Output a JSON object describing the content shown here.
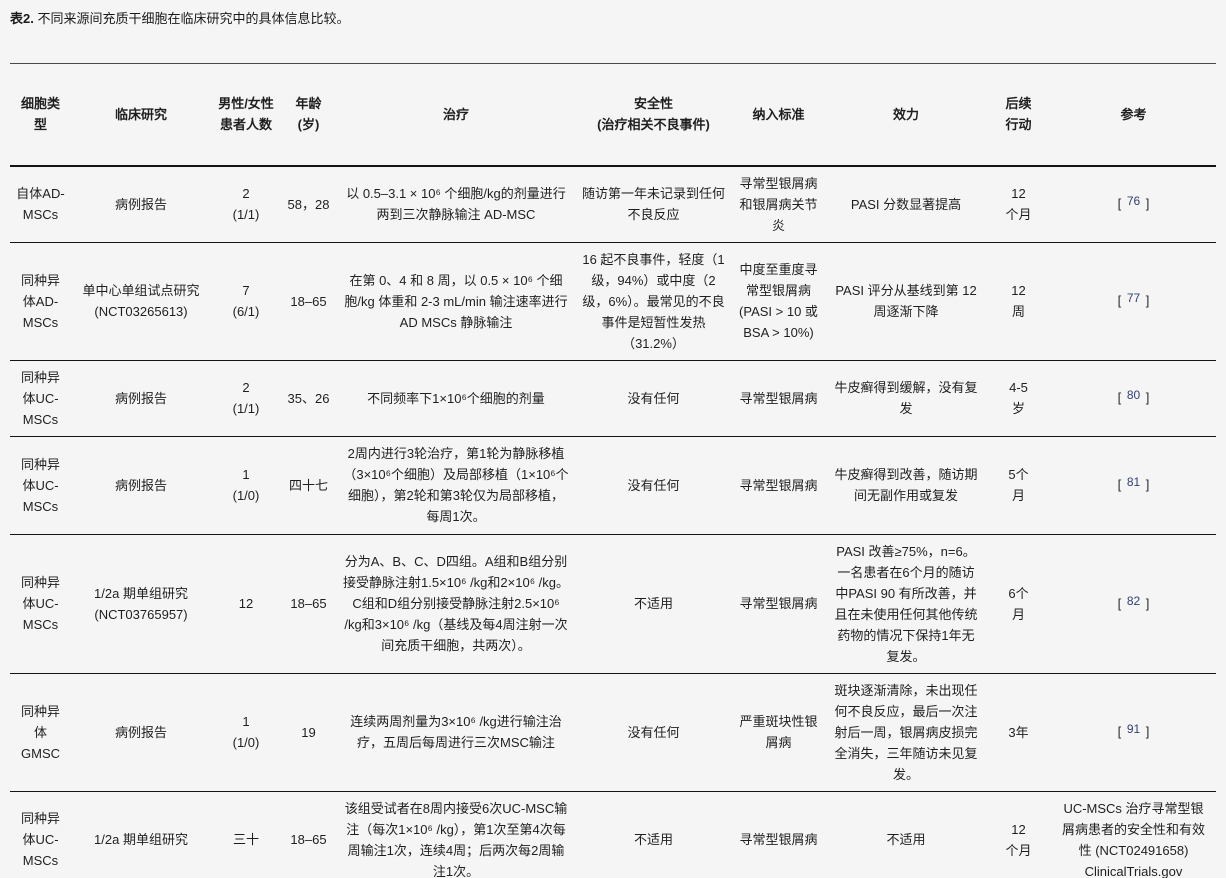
{
  "colors": {
    "reference_link": "#33416e",
    "page_background": "#f5f5f5",
    "rule": "#141414"
  },
  "title": {
    "bold": "表2.",
    "rest": " 不同来源间充质干细胞在临床研究中的具体信息比较。"
  },
  "table": {
    "headers": [
      "细胞类型",
      "临床研究",
      "男性/女性患者人数",
      "年龄\n(岁)",
      "治疗",
      "安全性\n(治疗相关不良事件)",
      "纳入标准",
      "效力",
      "后续\n行动",
      "参考"
    ],
    "rows": [
      {
        "cell_type": "自体AD-MSCs",
        "study": "病例报告",
        "patients": "2\n(1/1)",
        "age": "58，28",
        "treatment": "以 0.5–3.1 × 10⁶ 个细胞/kg的剂量进行两到三次静脉输注 AD-MSC",
        "safety": "随访第一年未记录到任何不良反应",
        "criteria": "寻常型银屑病和银屑病关节炎",
        "efficacy": "PASI 分数显著提高",
        "followup": "12\n个月",
        "ref": {
          "bracket_open": "[ ",
          "number": "76",
          "bracket_close": " ]"
        }
      },
      {
        "cell_type": "同种异体AD-MSCs",
        "study": "单中心单组试点研究\n(NCT03265613)",
        "patients": "7\n(6/1)",
        "age": "18–65",
        "treatment": "在第 0、4 和 8 周，以 0.5 × 10⁶ 个细胞/kg 体重和 2-3 mL/min 输注速率进行 AD MSCs 静脉输注",
        "safety": "16 起不良事件，轻度（1 级，94%）或中度（2 级，6%）。最常见的不良事件是短暂性发热（31.2%）",
        "criteria": "中度至重度寻常型银屑病 (PASI > 10 或 BSA > 10%)",
        "efficacy": "PASI 评分从基线到第 12 周逐渐下降",
        "followup": "12\n周",
        "ref": {
          "bracket_open": "[ ",
          "number": "77",
          "bracket_close": " ]"
        }
      },
      {
        "cell_type": "同种异体UC-MSCs",
        "study": "病例报告",
        "patients": "2\n(1/1)",
        "age": "35、26",
        "treatment": "不同频率下1×10⁶个细胞的剂量",
        "safety": "没有任何",
        "criteria": "寻常型银屑病",
        "efficacy": "牛皮癣得到缓解，没有复发",
        "followup": "4-5\n岁",
        "ref": {
          "bracket_open": "[ ",
          "number": "80",
          "bracket_close": " ]"
        }
      },
      {
        "cell_type": "同种异体UC-MSCs",
        "study": "病例报告",
        "patients": "1\n(1/0)",
        "age": "四十七",
        "treatment": "2周内进行3轮治疗，第1轮为静脉移植（3×10⁶个细胞）及局部移植（1×10⁶个细胞），第2轮和第3轮仅为局部移植，每周1次。",
        "safety": "没有任何",
        "criteria": "寻常型银屑病",
        "efficacy": "牛皮癣得到改善，随访期间无副作用或复发",
        "followup": "5个\n月",
        "ref": {
          "bracket_open": "[ ",
          "number": "81",
          "bracket_close": " ]"
        }
      },
      {
        "cell_type": "同种异体UC-MSCs",
        "study": "1/2a 期单组研究\n(NCT03765957)",
        "patients": "12",
        "age": "18–65",
        "treatment": "分为A、B、C、D四组。A组和B组分别接受静脉注射1.5×10⁶ /kg和2×10⁶ /kg。C组和D组分别接受静脉注射2.5×10⁶ /kg和3×10⁶ /kg（基线及每4周注射一次间充质干细胞，共两次）。",
        "safety": "不适用",
        "criteria": "寻常型银屑病",
        "efficacy": "PASI 改善≥75%，n=6。一名患者在6个月的随访中PASI 90 有所改善，并且在未使用任何其他传统药物的情况下保持1年无复发。",
        "followup": "6个\n月",
        "ref": {
          "bracket_open": "[ ",
          "number": "82",
          "bracket_close": " ]"
        }
      },
      {
        "cell_type": "同种异体\nGMSC",
        "study": "病例报告",
        "patients": "1\n(1/0)",
        "age": "19",
        "treatment": "连续两周剂量为3×10⁶ /kg进行输注治疗，五周后每周进行三次MSC输注",
        "safety": "没有任何",
        "criteria": "严重斑块性银屑病",
        "efficacy": "斑块逐渐清除，未出现任何不良反应，最后一次注射后一周，银屑病皮损完全消失，三年随访未见复发。",
        "followup": "3年",
        "ref": {
          "bracket_open": "[ ",
          "number": "91",
          "bracket_close": " ]"
        }
      },
      {
        "cell_type": "同种异体UC-MSCs",
        "study": "1/2a 期单组研究",
        "patients": "三十",
        "age": "18–65",
        "treatment": "该组受试者在8周内接受6次UC-MSC输注（每次1×10⁶ /kg），第1次至第4次每周输注1次，连续4周；后两次每2周输注1次。",
        "safety": "不适用",
        "criteria": "寻常型银屑病",
        "efficacy": "不适用",
        "followup": "12\n个月",
        "ref": {
          "text": "UC-MSCs 治疗寻常型银屑病患者的安全性和有效性 (NCT02491658) ClinicalTrials.gov"
        }
      }
    ]
  }
}
